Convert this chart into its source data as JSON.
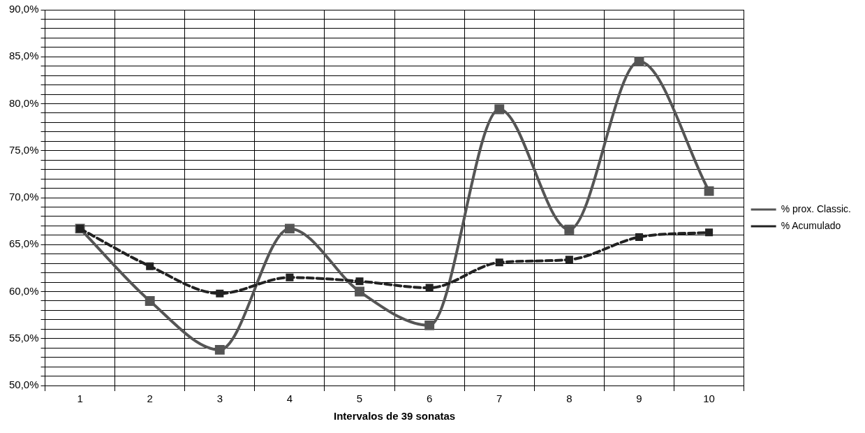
{
  "chart_data": {
    "type": "line",
    "xlabel": "Intervalos de 39 sonatas",
    "categories": [
      "1",
      "2",
      "3",
      "4",
      "5",
      "6",
      "7",
      "8",
      "9",
      "10"
    ],
    "series": [
      {
        "name": "% prox. Classic.",
        "color": "#555555",
        "line_style": "solid",
        "values": [
          66.7,
          59.0,
          53.8,
          66.7,
          60.0,
          56.4,
          79.4,
          66.6,
          84.5,
          70.7
        ]
      },
      {
        "name": "% Acumulado",
        "color": "#222222",
        "line_style": "dashed",
        "values": [
          66.7,
          62.7,
          59.8,
          61.5,
          61.1,
          60.4,
          63.1,
          63.4,
          65.8,
          66.3
        ]
      }
    ],
    "ylim": [
      50,
      90
    ],
    "yticks": [
      {
        "value": 50,
        "label": "50,0%"
      },
      {
        "value": 51,
        "label": null
      },
      {
        "value": 52,
        "label": null
      },
      {
        "value": 53,
        "label": null
      },
      {
        "value": 54,
        "label": null
      },
      {
        "value": 55,
        "label": "55,0%"
      },
      {
        "value": 56,
        "label": null
      },
      {
        "value": 57,
        "label": null
      },
      {
        "value": 58,
        "label": null
      },
      {
        "value": 59,
        "label": null
      },
      {
        "value": 60,
        "label": "60,0%"
      },
      {
        "value": 61,
        "label": null
      },
      {
        "value": 62,
        "label": null
      },
      {
        "value": 63,
        "label": null
      },
      {
        "value": 64,
        "label": null
      },
      {
        "value": 65,
        "label": "65,0%"
      },
      {
        "value": 66,
        "label": null
      },
      {
        "value": 67,
        "label": null
      },
      {
        "value": 68,
        "label": null
      },
      {
        "value": 69,
        "label": null
      },
      {
        "value": 70,
        "label": "70,0%"
      },
      {
        "value": 71,
        "label": null
      },
      {
        "value": 72,
        "label": null
      },
      {
        "value": 73,
        "label": null
      },
      {
        "value": 74,
        "label": null
      },
      {
        "value": 75,
        "label": "75,0%"
      },
      {
        "value": 76,
        "label": null
      },
      {
        "value": 77,
        "label": null
      },
      {
        "value": 78,
        "label": null
      },
      {
        "value": 79,
        "label": null
      },
      {
        "value": 80,
        "label": "80,0%"
      },
      {
        "value": 81,
        "label": null
      },
      {
        "value": 82,
        "label": null
      },
      {
        "value": 83,
        "label": null
      },
      {
        "value": 84,
        "label": null
      },
      {
        "value": 85,
        "label": "85,0%"
      },
      {
        "value": 86,
        "label": null
      },
      {
        "value": 87,
        "label": null
      },
      {
        "value": 88,
        "label": null
      },
      {
        "value": 89,
        "label": null
      },
      {
        "value": 90,
        "label": "90,0%"
      }
    ],
    "grid": true,
    "legend": "right",
    "marker": "square"
  }
}
